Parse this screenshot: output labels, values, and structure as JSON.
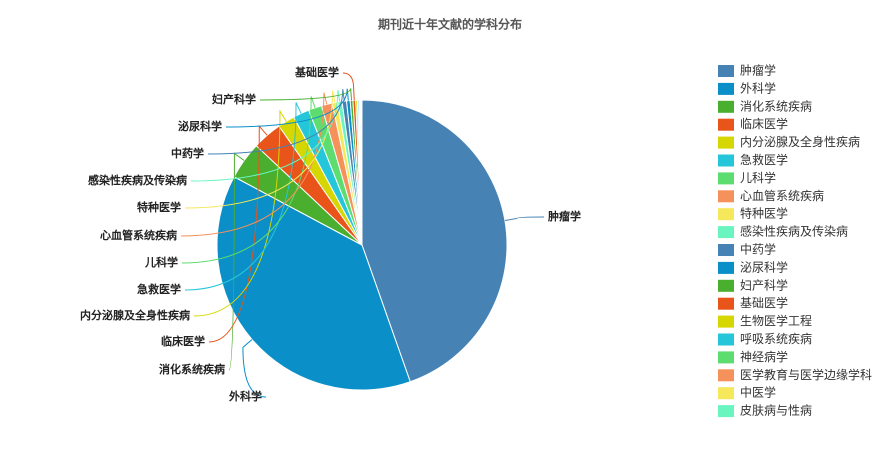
{
  "chart_data": {
    "type": "pie",
    "title": "期刊近十年文献的学科分布",
    "categories": [
      "肿瘤学",
      "外科学",
      "消化系统疾病",
      "临床医学",
      "内分泌腺及全身性疾病",
      "急救医学",
      "儿科学",
      "心血管系统疾病",
      "特种医学",
      "感染性疾病及传染病",
      "中药学",
      "泌尿科学",
      "妇产科学",
      "基础医学",
      "生物医学工程",
      "呼吸系统疾病",
      "神经病学",
      "医学教育与医学边缘学科",
      "中医学",
      "皮肤病与性病"
    ],
    "values": [
      44.6,
      38.2,
      4.2,
      3.3,
      1.9,
      1.8,
      1.5,
      1.2,
      0.6,
      0.5,
      0.5,
      0.4,
      0.3,
      0.3,
      0.2,
      0.15,
      0.12,
      0.1,
      0.08,
      0.05
    ],
    "colors": [
      "#4682b4",
      "#0a8fc8",
      "#4aae2f",
      "#e8541a",
      "#d6d600",
      "#26c6da",
      "#5ddc6f",
      "#f5915a",
      "#f5e85a",
      "#6af5c0",
      "#4682b4",
      "#0a8fc8",
      "#4aae2f",
      "#e8541a",
      "#d6d600",
      "#26c6da",
      "#5ddc6f",
      "#f5915a",
      "#f5e85a",
      "#6af5c0"
    ],
    "legend": "right"
  }
}
